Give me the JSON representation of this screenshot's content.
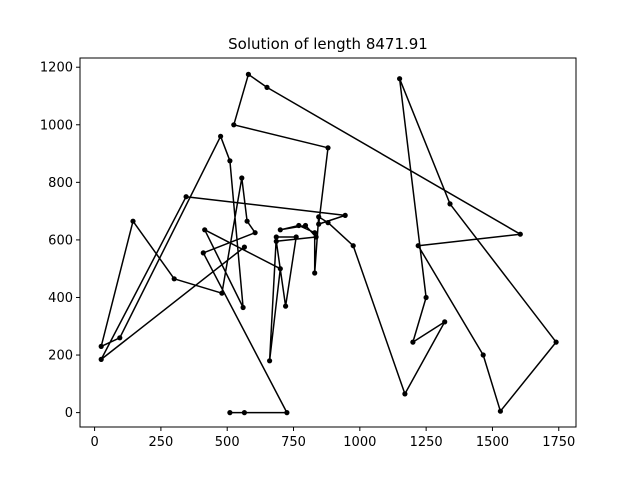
{
  "chart_data": {
    "type": "line",
    "title": "Solution of length 8471.91",
    "xlabel": "",
    "ylabel": "",
    "xlim": [
      -55,
      1815
    ],
    "ylim": [
      -50,
      1232
    ],
    "xticks": [
      0,
      250,
      500,
      750,
      1000,
      1250,
      1500,
      1750
    ],
    "yticks": [
      0,
      200,
      400,
      600,
      800,
      1000,
      1200
    ],
    "grid": false,
    "line_color": "#000000",
    "marker": "circle",
    "series": [
      {
        "x": [
          565,
          25,
          345,
          945,
          845,
          880,
          525,
          580,
          650,
          1605,
          1220,
          1465,
          1530,
          1740,
          1340,
          1150,
          1250,
          1200,
          1320,
          1170,
          975,
          880,
          845,
          830,
          830,
          770,
          700,
          795,
          835,
          685,
          720,
          760,
          685,
          660,
          700,
          415,
          560,
          510,
          475,
          95,
          25,
          145,
          300,
          480,
          555,
          575,
          605,
          410,
          725,
          510,
          565
        ],
        "y": [
          575,
          185,
          750,
          685,
          655,
          920,
          1000,
          1175,
          1130,
          620,
          580,
          200,
          5,
          245,
          725,
          1160,
          400,
          245,
          315,
          65,
          580,
          660,
          680,
          485,
          625,
          650,
          635,
          650,
          610,
          595,
          370,
          610,
          610,
          180,
          500,
          635,
          365,
          875,
          960,
          260,
          230,
          665,
          465,
          415,
          815,
          665,
          625,
          555,
          0,
          0,
          0
        ]
      }
    ]
  }
}
